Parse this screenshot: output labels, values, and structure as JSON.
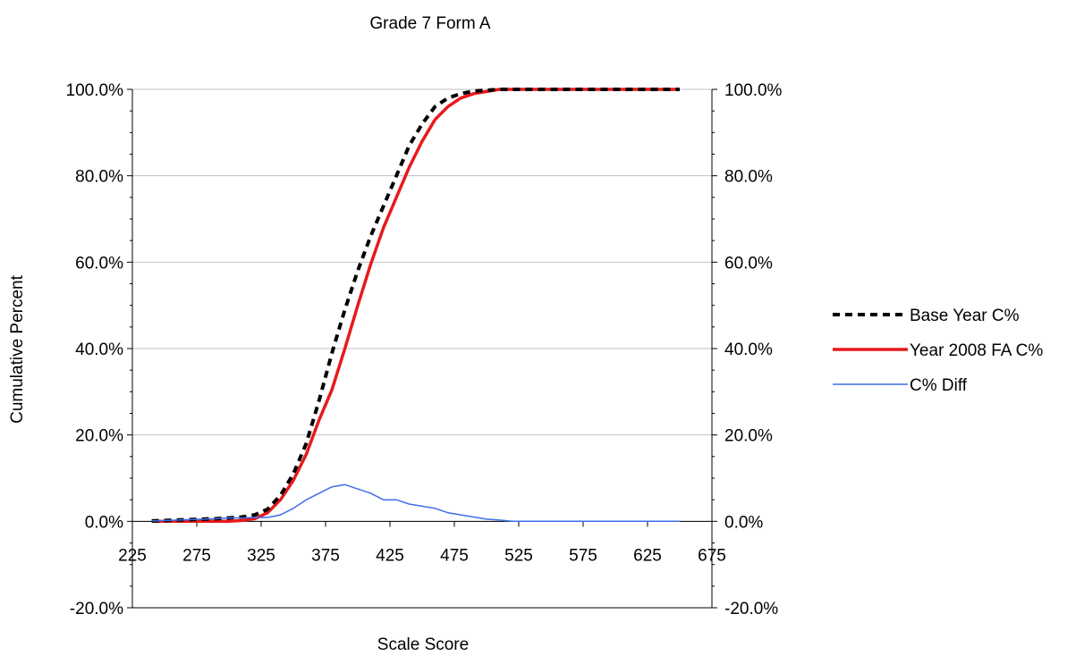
{
  "chart_data": {
    "type": "line",
    "title": "Grade 7 Form A",
    "xlabel": "Scale Score",
    "ylabel": "Cumulative Percent",
    "xlim": [
      225,
      675
    ],
    "ylim": [
      -20,
      100
    ],
    "x_ticks": [
      "225",
      "275",
      "325",
      "375",
      "425",
      "475",
      "525",
      "575",
      "625",
      "675"
    ],
    "y_ticks": [
      "-20.0%",
      "0.0%",
      "20.0%",
      "40.0%",
      "60.0%",
      "80.0%",
      "100.0%"
    ],
    "y_ticks_right": [
      "-20.0%",
      "0.0%",
      "20.0%",
      "40.0%",
      "60.0%",
      "80.0%",
      "100.0%"
    ],
    "y_tick_values": [
      -20,
      0,
      20,
      40,
      60,
      80,
      100
    ],
    "gridlines": [
      0,
      20,
      40,
      60,
      80,
      100
    ],
    "grid": true,
    "legend_position": "right",
    "series": [
      {
        "name": "Base Year C%",
        "color": "#000000",
        "style": "dashed",
        "x": [
          240,
          250,
          260,
          270,
          280,
          290,
          300,
          310,
          320,
          330,
          340,
          350,
          360,
          370,
          380,
          390,
          400,
          410,
          420,
          430,
          440,
          450,
          460,
          470,
          480,
          490,
          500,
          510,
          520,
          530,
          540,
          550,
          560,
          570,
          580,
          590,
          600,
          610,
          620,
          630,
          640,
          650
        ],
        "y": [
          0.1,
          0.2,
          0.3,
          0.4,
          0.5,
          0.6,
          0.8,
          1.0,
          1.5,
          2.8,
          6,
          11,
          18,
          28,
          39,
          49,
          58,
          66,
          73,
          80,
          87,
          92,
          96,
          98,
          99,
          99.6,
          99.8,
          100,
          100,
          100,
          100,
          100,
          100,
          100,
          100,
          100,
          100,
          100,
          100,
          100,
          100,
          100
        ]
      },
      {
        "name": "Year 2008 FA C%",
        "color": "#e8191c",
        "style": "solid",
        "x": [
          240,
          250,
          260,
          270,
          280,
          290,
          300,
          310,
          320,
          330,
          340,
          350,
          360,
          370,
          380,
          390,
          400,
          410,
          420,
          430,
          440,
          450,
          460,
          470,
          480,
          490,
          500,
          510,
          520,
          530,
          540,
          550,
          560,
          570,
          580,
          590,
          600,
          610,
          620,
          630,
          640,
          650
        ],
        "y": [
          0,
          0,
          0,
          0,
          0,
          0,
          0,
          0.2,
          0.6,
          2,
          5,
          9.5,
          15.5,
          23.5,
          30.5,
          40,
          50,
          59.5,
          68,
          75,
          82,
          88,
          93,
          96,
          98,
          99,
          99.5,
          100,
          100,
          100,
          100,
          100,
          100,
          100,
          100,
          100,
          100,
          100,
          100,
          100,
          100,
          100
        ]
      },
      {
        "name": "C% Diff",
        "color": "#3f6ee8",
        "style": "solid",
        "x": [
          240,
          250,
          260,
          270,
          280,
          290,
          300,
          310,
          320,
          330,
          340,
          350,
          360,
          370,
          380,
          390,
          400,
          410,
          420,
          430,
          440,
          450,
          460,
          470,
          480,
          490,
          500,
          510,
          520,
          530,
          540,
          550,
          560,
          570,
          580,
          590,
          600,
          610,
          620,
          630,
          640,
          650
        ],
        "y": [
          0.1,
          0.2,
          0.3,
          0.4,
          0.5,
          0.6,
          0.8,
          0.8,
          0.9,
          0.9,
          1.5,
          3,
          5,
          6.5,
          8,
          8.5,
          7.5,
          6.5,
          5,
          5,
          4,
          3.5,
          3,
          2,
          1.5,
          1,
          0.5,
          0.3,
          0,
          0,
          0,
          0,
          0,
          0,
          0,
          0,
          0,
          0,
          0,
          0,
          0,
          0
        ]
      }
    ]
  }
}
